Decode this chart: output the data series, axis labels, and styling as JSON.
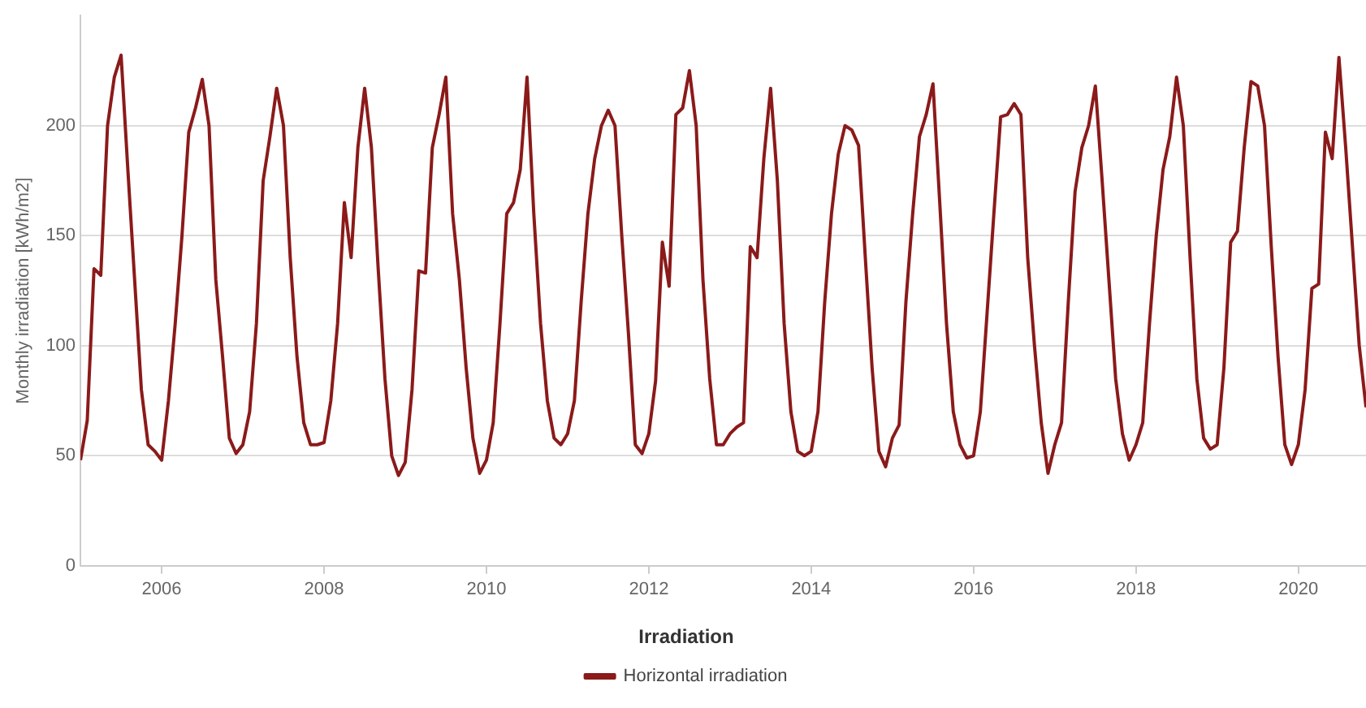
{
  "chart_data": {
    "type": "line",
    "ylabel": "Monthly irradiation [kWh/m2]",
    "legend_title": "Irradiation",
    "legend": "bottom",
    "grid": "y",
    "marker": "none",
    "line_style": "solid",
    "xlim": [
      "2005-01",
      "2020-11"
    ],
    "xticks": [
      "2006",
      "2008",
      "2010",
      "2012",
      "2014",
      "2016",
      "2018",
      "2020"
    ],
    "ylim": [
      0,
      250
    ],
    "yticks": [
      0,
      50,
      100,
      150,
      200
    ],
    "x": [
      "2005-01",
      "2005-02",
      "2005-03",
      "2005-04",
      "2005-05",
      "2005-06",
      "2005-07",
      "2005-08",
      "2005-09",
      "2005-10",
      "2005-11",
      "2005-12",
      "2006-01",
      "2006-02",
      "2006-03",
      "2006-04",
      "2006-05",
      "2006-06",
      "2006-07",
      "2006-08",
      "2006-09",
      "2006-10",
      "2006-11",
      "2006-12",
      "2007-01",
      "2007-02",
      "2007-03",
      "2007-04",
      "2007-05",
      "2007-06",
      "2007-07",
      "2007-08",
      "2007-09",
      "2007-10",
      "2007-11",
      "2007-12",
      "2008-01",
      "2008-02",
      "2008-03",
      "2008-04",
      "2008-05",
      "2008-06",
      "2008-07",
      "2008-08",
      "2008-09",
      "2008-10",
      "2008-11",
      "2008-12",
      "2009-01",
      "2009-02",
      "2009-03",
      "2009-04",
      "2009-05",
      "2009-06",
      "2009-07",
      "2009-08",
      "2009-09",
      "2009-10",
      "2009-11",
      "2009-12",
      "2010-01",
      "2010-02",
      "2010-03",
      "2010-04",
      "2010-05",
      "2010-06",
      "2010-07",
      "2010-08",
      "2010-09",
      "2010-10",
      "2010-11",
      "2010-12",
      "2011-01",
      "2011-02",
      "2011-03",
      "2011-04",
      "2011-05",
      "2011-06",
      "2011-07",
      "2011-08",
      "2011-09",
      "2011-10",
      "2011-11",
      "2011-12",
      "2012-01",
      "2012-02",
      "2012-03",
      "2012-04",
      "2012-05",
      "2012-06",
      "2012-07",
      "2012-08",
      "2012-09",
      "2012-10",
      "2012-11",
      "2012-12",
      "2013-01",
      "2013-02",
      "2013-03",
      "2013-04",
      "2013-05",
      "2013-06",
      "2013-07",
      "2013-08",
      "2013-09",
      "2013-10",
      "2013-11",
      "2013-12",
      "2014-01",
      "2014-02",
      "2014-03",
      "2014-04",
      "2014-05",
      "2014-06",
      "2014-07",
      "2014-08",
      "2014-09",
      "2014-10",
      "2014-11",
      "2014-12",
      "2015-01",
      "2015-02",
      "2015-03",
      "2015-04",
      "2015-05",
      "2015-06",
      "2015-07",
      "2015-08",
      "2015-09",
      "2015-10",
      "2015-11",
      "2015-12",
      "2016-01",
      "2016-02",
      "2016-03",
      "2016-04",
      "2016-05",
      "2016-06",
      "2016-07",
      "2016-08",
      "2016-09",
      "2016-10",
      "2016-11",
      "2016-12",
      "2017-01",
      "2017-02",
      "2017-03",
      "2017-04",
      "2017-05",
      "2017-06",
      "2017-07",
      "2017-08",
      "2017-09",
      "2017-10",
      "2017-11",
      "2017-12",
      "2018-01",
      "2018-02",
      "2018-03",
      "2018-04",
      "2018-05",
      "2018-06",
      "2018-07",
      "2018-08",
      "2018-09",
      "2018-10",
      "2018-11",
      "2018-12",
      "2019-01",
      "2019-02",
      "2019-03",
      "2019-04",
      "2019-05",
      "2019-06",
      "2019-07",
      "2019-08",
      "2019-09",
      "2019-10",
      "2019-11",
      "2019-12",
      "2020-01",
      "2020-02",
      "2020-03",
      "2020-04",
      "2020-05",
      "2020-06",
      "2020-07",
      "2020-08",
      "2020-09",
      "2020-10",
      "2020-11"
    ],
    "series": [
      {
        "name": "Horizontal irradiation",
        "color": "#8b1a1a",
        "values": [
          48,
          66,
          135,
          132,
          200,
          222,
          232,
          180,
          130,
          80,
          55,
          52,
          48,
          75,
          110,
          150,
          197,
          208,
          221,
          200,
          130,
          95,
          58,
          51,
          55,
          70,
          110,
          175,
          195,
          217,
          200,
          140,
          95,
          65,
          55,
          55,
          56,
          75,
          110,
          165,
          140,
          190,
          217,
          190,
          135,
          85,
          50,
          41,
          47,
          80,
          134,
          133,
          190,
          205,
          222,
          160,
          130,
          90,
          58,
          42,
          48,
          65,
          110,
          160,
          165,
          180,
          222,
          160,
          110,
          75,
          58,
          55,
          60,
          75,
          120,
          160,
          185,
          200,
          207,
          200,
          150,
          105,
          55,
          51,
          60,
          84,
          147,
          127,
          205,
          208,
          225,
          200,
          130,
          85,
          55,
          55,
          60,
          63,
          65,
          145,
          140,
          185,
          217,
          175,
          110,
          70,
          52,
          50,
          52,
          70,
          120,
          160,
          187,
          200,
          198,
          191,
          140,
          90,
          52,
          45,
          58,
          64,
          120,
          160,
          195,
          205,
          219,
          165,
          110,
          70,
          55,
          49,
          50,
          70,
          115,
          160,
          204,
          205,
          210,
          205,
          140,
          100,
          65,
          42,
          55,
          65,
          120,
          170,
          190,
          200,
          218,
          175,
          130,
          85,
          60,
          48,
          55,
          65,
          110,
          150,
          180,
          195,
          222,
          200,
          140,
          85,
          58,
          53,
          55,
          90,
          147,
          152,
          190,
          220,
          218,
          200,
          145,
          95,
          55,
          46,
          55,
          80,
          126,
          128,
          197,
          185,
          231,
          190,
          145,
          100,
          72
        ]
      }
    ]
  }
}
